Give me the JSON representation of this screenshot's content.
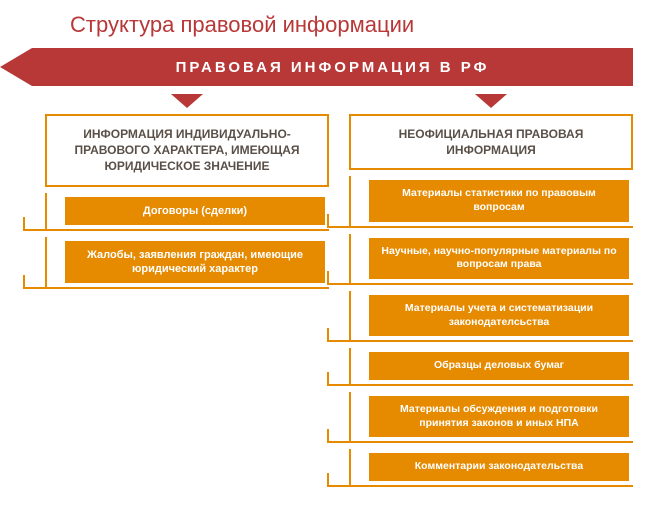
{
  "colors": {
    "title": "#b83838",
    "banner_bg": "#b83838",
    "banner_text": "#ffffff",
    "accent": "#e68a00",
    "header_text": "#5a5048",
    "item_text": "#ffffff",
    "page_bg": "#ffffff"
  },
  "title": "Структура правовой информации",
  "banner": "ПРАВОВАЯ ИНФОРМАЦИЯ В РФ",
  "left": {
    "header": "ИНФОРМАЦИЯ ИНДИВИДУАЛЬНО-ПРАВОВОГО ХАРАКТЕРА, ИМЕЮЩАЯ ЮРИДИЧЕСКОЕ ЗНАЧЕНИЕ",
    "items": [
      "Договоры (сделки)",
      "Жалобы, заявления граждан, имеющие юридический характер"
    ]
  },
  "right": {
    "header": "НЕОФИЦИАЛЬНАЯ ПРАВОВАЯ ИНФОРМАЦИЯ",
    "items": [
      "Материалы статистики по правовым вопросам",
      "Научные, научно-популярные материалы по вопросам права",
      "Материалы учета и систематизации законодателсьства",
      "Образцы деловых бумаг",
      "Материалы обсуждения и подготовки принятия законов и иных НПА",
      "Комментарии законодательства"
    ]
  }
}
